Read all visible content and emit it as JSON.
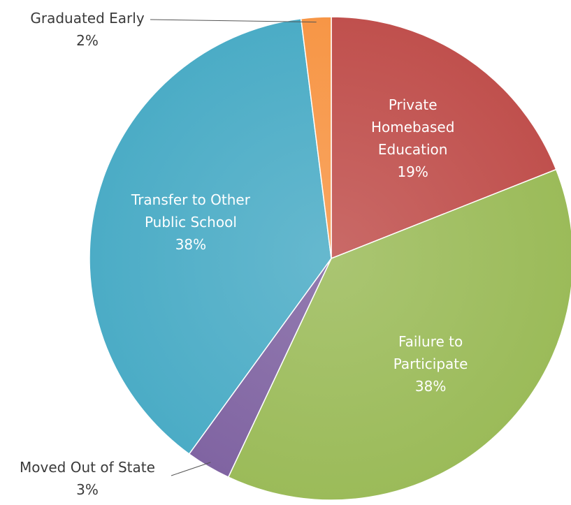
{
  "chart_data": {
    "type": "pie",
    "categories": [
      "Private Homebased Education",
      "Failure to Participate",
      "Moved Out of State",
      "Transfer  to Other Public School",
      "Graduated Early"
    ],
    "values": [
      19,
      38,
      3,
      38,
      2
    ],
    "value_labels": [
      "19%",
      "38%",
      "3%",
      "38%",
      "2%"
    ],
    "colors": [
      "#c0504d",
      "#9bbb59",
      "#8064a2",
      "#4bacc6",
      "#f79646"
    ]
  }
}
